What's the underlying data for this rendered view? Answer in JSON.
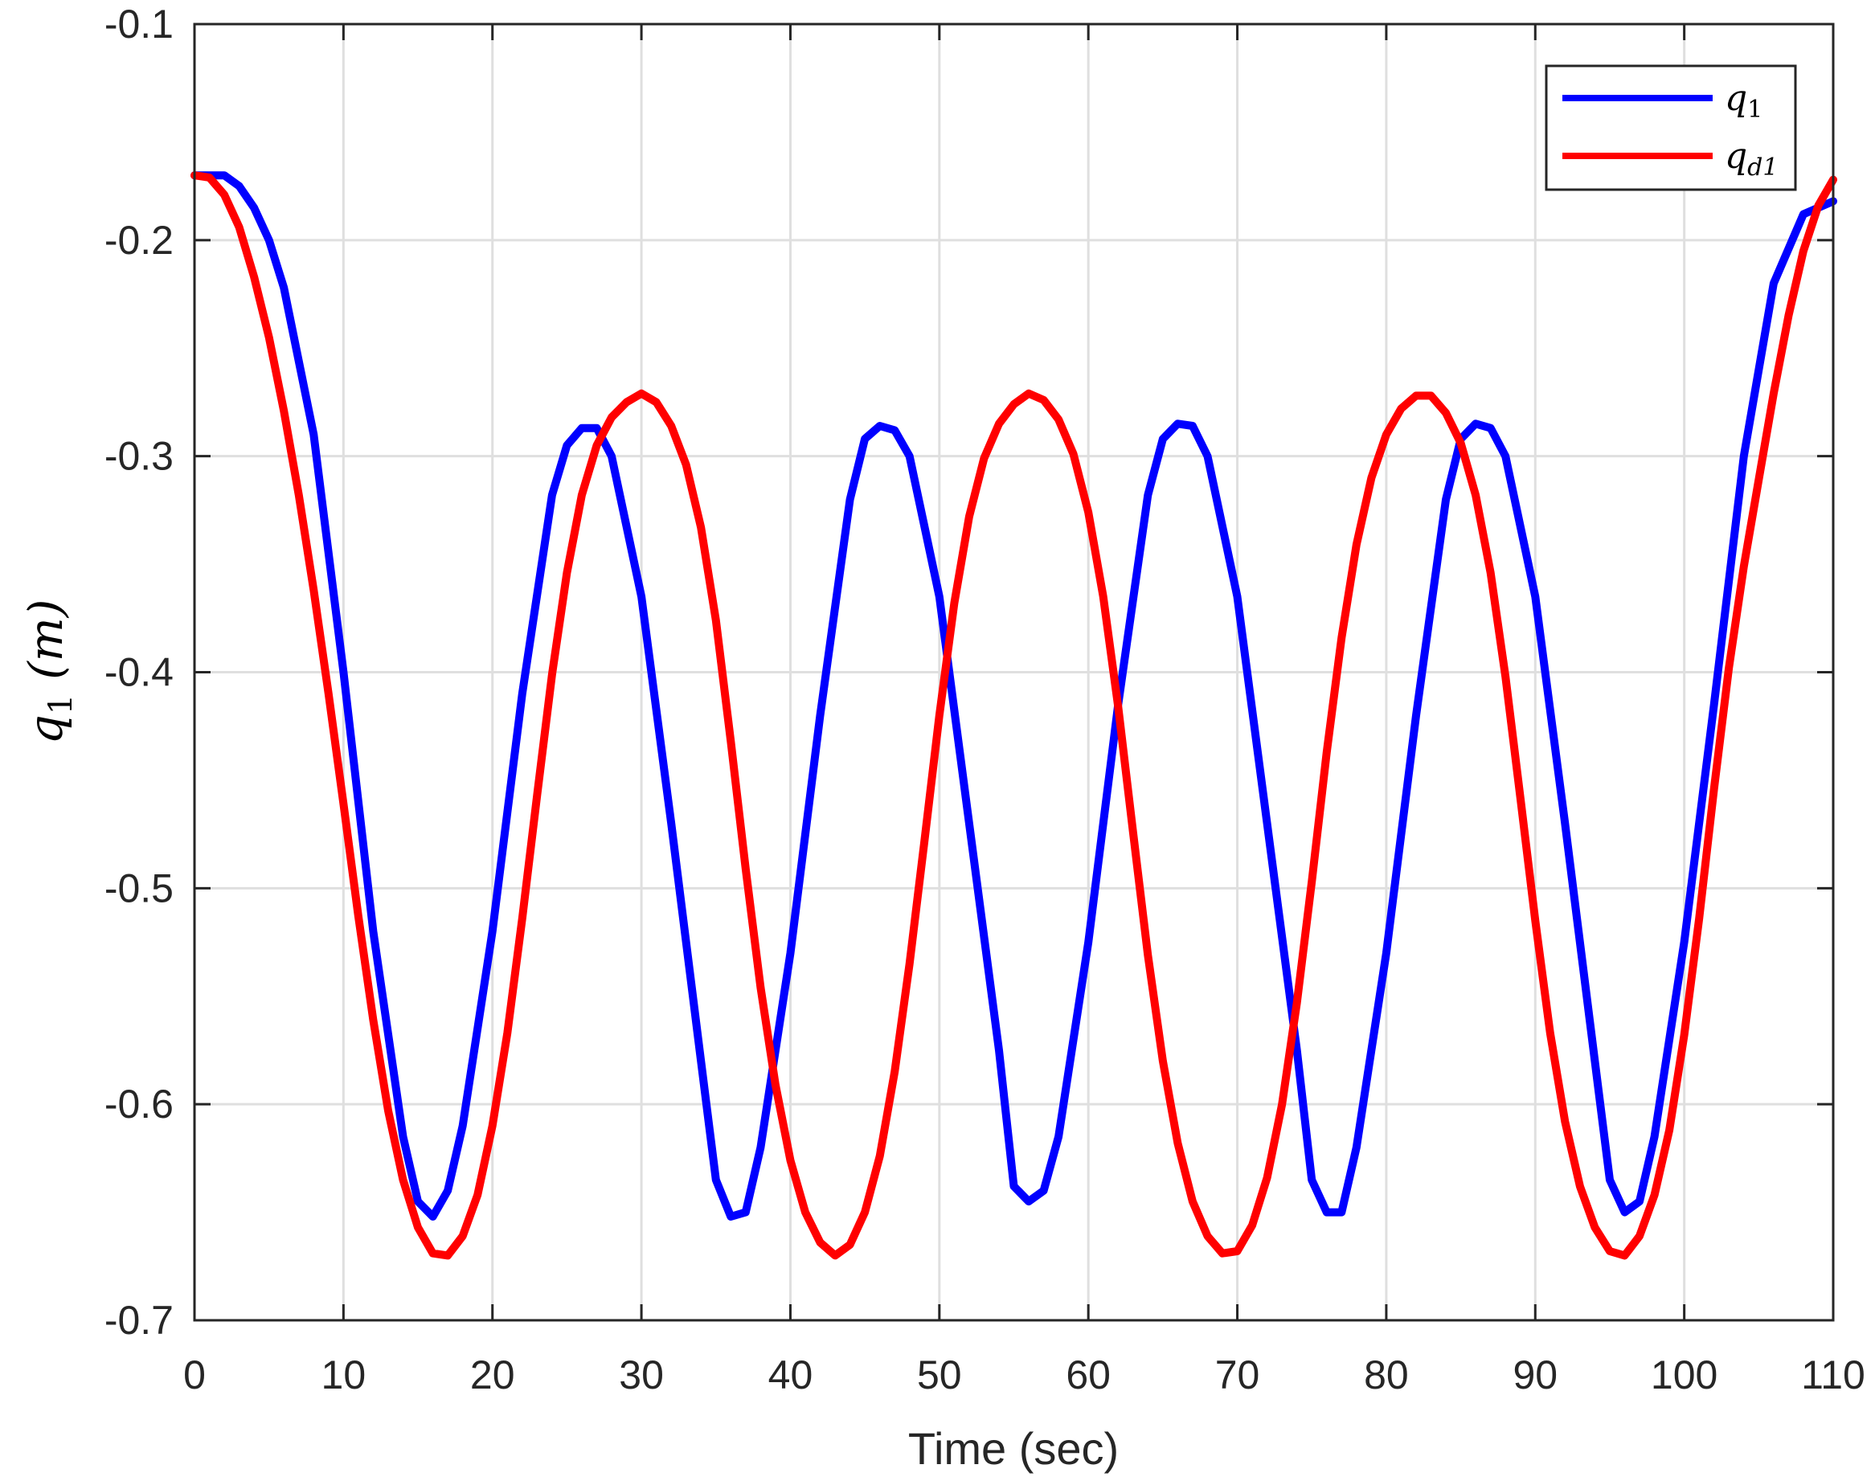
{
  "chart_data": {
    "type": "line",
    "xlabel": "Time (sec)",
    "ylabel": {
      "symbol": "q",
      "subscript": "1",
      "unit": "(m)"
    },
    "xlim": [
      0,
      110
    ],
    "ylim": [
      -0.7,
      -0.1
    ],
    "xticks": [
      "0",
      "10",
      "20",
      "30",
      "40",
      "50",
      "60",
      "70",
      "80",
      "90",
      "100",
      "110"
    ],
    "yticks": [
      "-0.1",
      "-0.2",
      "-0.3",
      "-0.4",
      "-0.5",
      "-0.6",
      "-0.7"
    ],
    "grid": true,
    "legend_position": "top-right",
    "series": [
      {
        "name": "q_1",
        "label_symbol": "q",
        "label_subscript": "1",
        "color": "#0000ff",
        "x": [
          0,
          2,
          3,
          4,
          5,
          6,
          8,
          10,
          12,
          14,
          15,
          16,
          17,
          18,
          20,
          22,
          24,
          25,
          26,
          27,
          28,
          30,
          32,
          34,
          35,
          36,
          37,
          38,
          40,
          42,
          44,
          45,
          46,
          47,
          48,
          50,
          52,
          54,
          55,
          56,
          57,
          58,
          60,
          62,
          64,
          65,
          66,
          67,
          68,
          70,
          72,
          74,
          75,
          76,
          77,
          78,
          80,
          82,
          84,
          85,
          86,
          87,
          88,
          90,
          92,
          94,
          95,
          96,
          97,
          98,
          100,
          102,
          104,
          106,
          108,
          110
        ],
        "y": [
          -0.17,
          -0.17,
          -0.175,
          -0.185,
          -0.2,
          -0.222,
          -0.29,
          -0.4,
          -0.52,
          -0.615,
          -0.645,
          -0.652,
          -0.64,
          -0.61,
          -0.52,
          -0.41,
          -0.318,
          -0.295,
          -0.287,
          -0.287,
          -0.3,
          -0.365,
          -0.47,
          -0.58,
          -0.635,
          -0.652,
          -0.65,
          -0.62,
          -0.53,
          -0.42,
          -0.32,
          -0.292,
          -0.286,
          -0.288,
          -0.3,
          -0.365,
          -0.47,
          -0.575,
          -0.638,
          -0.645,
          -0.64,
          -0.615,
          -0.525,
          -0.415,
          -0.318,
          -0.292,
          -0.285,
          -0.286,
          -0.3,
          -0.365,
          -0.47,
          -0.575,
          -0.635,
          -0.65,
          -0.65,
          -0.62,
          -0.53,
          -0.42,
          -0.32,
          -0.292,
          -0.285,
          -0.287,
          -0.3,
          -0.365,
          -0.47,
          -0.58,
          -0.635,
          -0.65,
          -0.645,
          -0.615,
          -0.525,
          -0.415,
          -0.3,
          -0.22,
          -0.188,
          -0.182
        ]
      },
      {
        "name": "q_d1",
        "label_symbol": "q",
        "label_subscript": "d1",
        "color": "#ff0000",
        "x": [
          0,
          1,
          2,
          3,
          4,
          5,
          6,
          7,
          8,
          9,
          10,
          11,
          12,
          13,
          14,
          15,
          16,
          17,
          18,
          19,
          20,
          21,
          22,
          23,
          24,
          25,
          26,
          27,
          28,
          29,
          30,
          31,
          32,
          33,
          34,
          35,
          36,
          37,
          38,
          39,
          40,
          41,
          42,
          43,
          44,
          45,
          46,
          47,
          48,
          49,
          50,
          51,
          52,
          53,
          54,
          55,
          56,
          57,
          58,
          59,
          60,
          61,
          62,
          63,
          64,
          65,
          66,
          67,
          68,
          69,
          70,
          71,
          72,
          73,
          74,
          75,
          76,
          77,
          78,
          79,
          80,
          81,
          82,
          83,
          84,
          85,
          86,
          87,
          88,
          89,
          90,
          91,
          92,
          93,
          94,
          95,
          96,
          97,
          98,
          99,
          100,
          101,
          102,
          103,
          104,
          105,
          106,
          107,
          108,
          109,
          110
        ],
        "y": [
          -0.17,
          -0.171,
          -0.179,
          -0.194,
          -0.217,
          -0.245,
          -0.279,
          -0.318,
          -0.362,
          -0.41,
          -0.461,
          -0.513,
          -0.561,
          -0.603,
          -0.635,
          -0.657,
          -0.669,
          -0.67,
          -0.661,
          -0.642,
          -0.61,
          -0.567,
          -0.514,
          -0.457,
          -0.401,
          -0.354,
          -0.318,
          -0.295,
          -0.282,
          -0.275,
          -0.271,
          -0.275,
          -0.286,
          -0.304,
          -0.333,
          -0.376,
          -0.432,
          -0.491,
          -0.546,
          -0.591,
          -0.626,
          -0.65,
          -0.664,
          -0.67,
          -0.665,
          -0.65,
          -0.624,
          -0.585,
          -0.535,
          -0.478,
          -0.42,
          -0.368,
          -0.328,
          -0.301,
          -0.285,
          -0.276,
          -0.271,
          -0.274,
          -0.283,
          -0.299,
          -0.326,
          -0.365,
          -0.416,
          -0.474,
          -0.531,
          -0.58,
          -0.618,
          -0.645,
          -0.661,
          -0.669,
          -0.668,
          -0.656,
          -0.634,
          -0.6,
          -0.553,
          -0.497,
          -0.437,
          -0.384,
          -0.341,
          -0.31,
          -0.29,
          -0.278,
          -0.272,
          -0.272,
          -0.28,
          -0.294,
          -0.318,
          -0.354,
          -0.402,
          -0.458,
          -0.515,
          -0.567,
          -0.608,
          -0.638,
          -0.657,
          -0.668,
          -0.67,
          -0.661,
          -0.642,
          -0.612,
          -0.568,
          -0.514,
          -0.454,
          -0.398,
          -0.351,
          -0.311,
          -0.271,
          -0.235,
          -0.205,
          -0.184,
          -0.172
        ]
      }
    ]
  }
}
